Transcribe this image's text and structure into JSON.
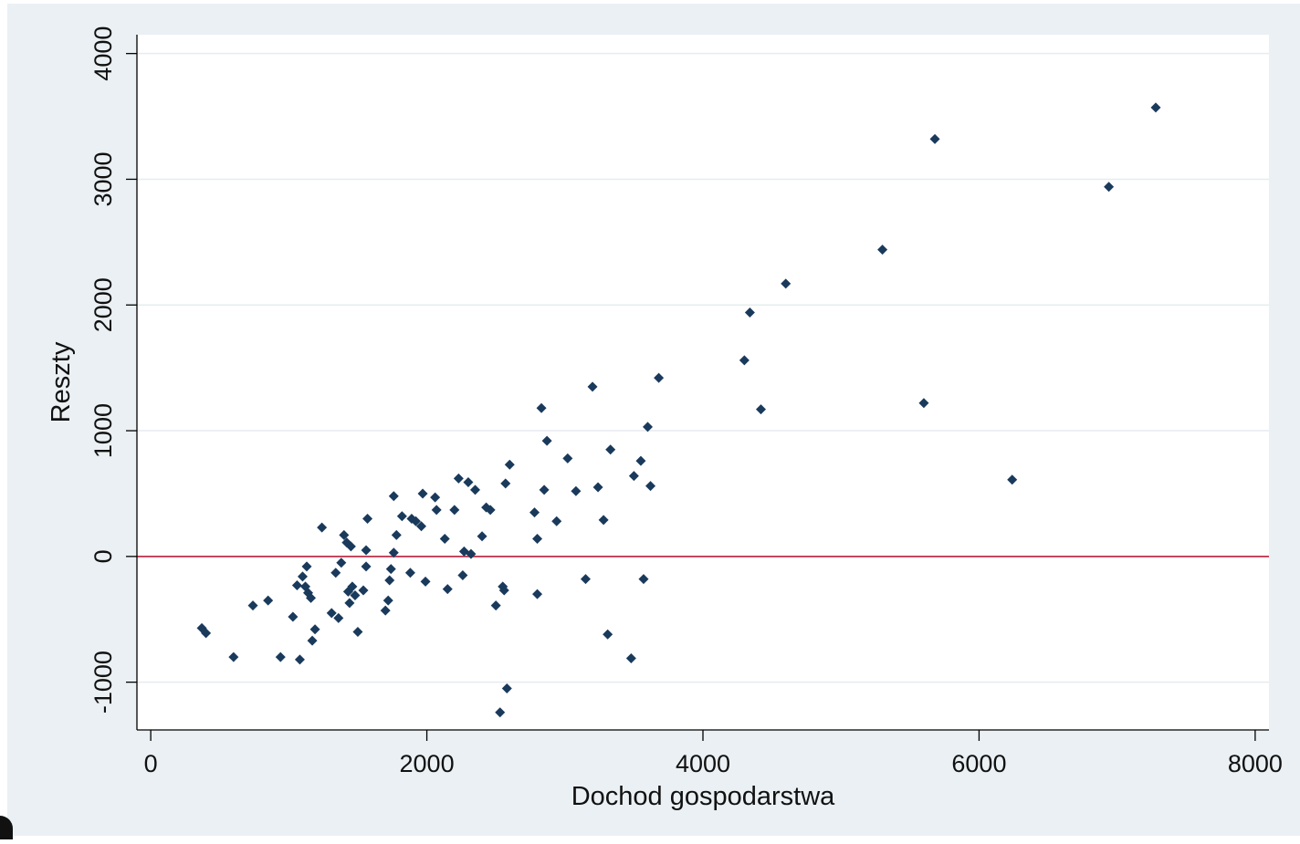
{
  "chart_data": {
    "type": "scatter",
    "title": "",
    "xlabel": "Dochod gospodarstwa",
    "ylabel": "Reszty",
    "xlim": [
      -100,
      8100
    ],
    "ylim": [
      -1380,
      4150
    ],
    "x_ticks": [
      0,
      2000,
      4000,
      6000,
      8000
    ],
    "x_tick_labels": [
      "0",
      "2000",
      "4000",
      "6000",
      "8000"
    ],
    "y_ticks": [
      -1000,
      0,
      1000,
      2000,
      3000,
      4000
    ],
    "y_tick_labels": [
      "-1000",
      "0",
      "1000",
      "2000",
      "3000",
      "4000"
    ],
    "grid": true,
    "reference_line": {
      "y": 0,
      "color": "#c0304a"
    },
    "colors": {
      "point": "#1a3a5c",
      "plot_background": "#ffffff",
      "outer_background": "#eaf0f3",
      "grid": "#e6ecef",
      "axis": "#000000"
    },
    "points": [
      [
        370,
        -570
      ],
      [
        400,
        -610
      ],
      [
        600,
        -800
      ],
      [
        740,
        -390
      ],
      [
        850,
        -350
      ],
      [
        940,
        -800
      ],
      [
        1030,
        -480
      ],
      [
        1060,
        -230
      ],
      [
        1080,
        -820
      ],
      [
        1100,
        -160
      ],
      [
        1120,
        -240
      ],
      [
        1130,
        -80
      ],
      [
        1140,
        -290
      ],
      [
        1160,
        -330
      ],
      [
        1170,
        -670
      ],
      [
        1190,
        -580
      ],
      [
        1240,
        230
      ],
      [
        1310,
        -450
      ],
      [
        1340,
        -130
      ],
      [
        1360,
        -490
      ],
      [
        1380,
        -50
      ],
      [
        1400,
        170
      ],
      [
        1420,
        110
      ],
      [
        1430,
        -280
      ],
      [
        1440,
        -370
      ],
      [
        1450,
        80
      ],
      [
        1460,
        -240
      ],
      [
        1480,
        -310
      ],
      [
        1500,
        -600
      ],
      [
        1540,
        -270
      ],
      [
        1560,
        -80
      ],
      [
        1560,
        50
      ],
      [
        1570,
        300
      ],
      [
        1700,
        -430
      ],
      [
        1720,
        -350
      ],
      [
        1730,
        -190
      ],
      [
        1740,
        -100
      ],
      [
        1760,
        30
      ],
      [
        1760,
        480
      ],
      [
        1780,
        170
      ],
      [
        1820,
        320
      ],
      [
        1880,
        -130
      ],
      [
        1890,
        300
      ],
      [
        1920,
        280
      ],
      [
        1960,
        240
      ],
      [
        1970,
        500
      ],
      [
        1990,
        -200
      ],
      [
        2060,
        470
      ],
      [
        2070,
        370
      ],
      [
        2130,
        140
      ],
      [
        2150,
        -260
      ],
      [
        2200,
        370
      ],
      [
        2230,
        620
      ],
      [
        2260,
        -150
      ],
      [
        2270,
        40
      ],
      [
        2300,
        590
      ],
      [
        2320,
        20
      ],
      [
        2350,
        530
      ],
      [
        2400,
        160
      ],
      [
        2430,
        390
      ],
      [
        2460,
        370
      ],
      [
        2500,
        -390
      ],
      [
        2530,
        -1240
      ],
      [
        2550,
        -240
      ],
      [
        2560,
        -270
      ],
      [
        2570,
        580
      ],
      [
        2580,
        -1050
      ],
      [
        2600,
        730
      ],
      [
        2780,
        350
      ],
      [
        2800,
        140
      ],
      [
        2800,
        -300
      ],
      [
        2830,
        1180
      ],
      [
        2850,
        530
      ],
      [
        2870,
        920
      ],
      [
        2940,
        280
      ],
      [
        3020,
        780
      ],
      [
        3080,
        520
      ],
      [
        3150,
        -180
      ],
      [
        3200,
        1350
      ],
      [
        3240,
        550
      ],
      [
        3280,
        290
      ],
      [
        3310,
        -620
      ],
      [
        3330,
        850
      ],
      [
        3480,
        -810
      ],
      [
        3500,
        640
      ],
      [
        3550,
        760
      ],
      [
        3570,
        -180
      ],
      [
        3600,
        1030
      ],
      [
        3620,
        560
      ],
      [
        3680,
        1420
      ],
      [
        4300,
        1560
      ],
      [
        4340,
        1940
      ],
      [
        4420,
        1170
      ],
      [
        4600,
        2170
      ],
      [
        5300,
        2440
      ],
      [
        5600,
        1220
      ],
      [
        5680,
        3320
      ],
      [
        6240,
        610
      ],
      [
        6940,
        2940
      ],
      [
        7280,
        3570
      ]
    ]
  }
}
